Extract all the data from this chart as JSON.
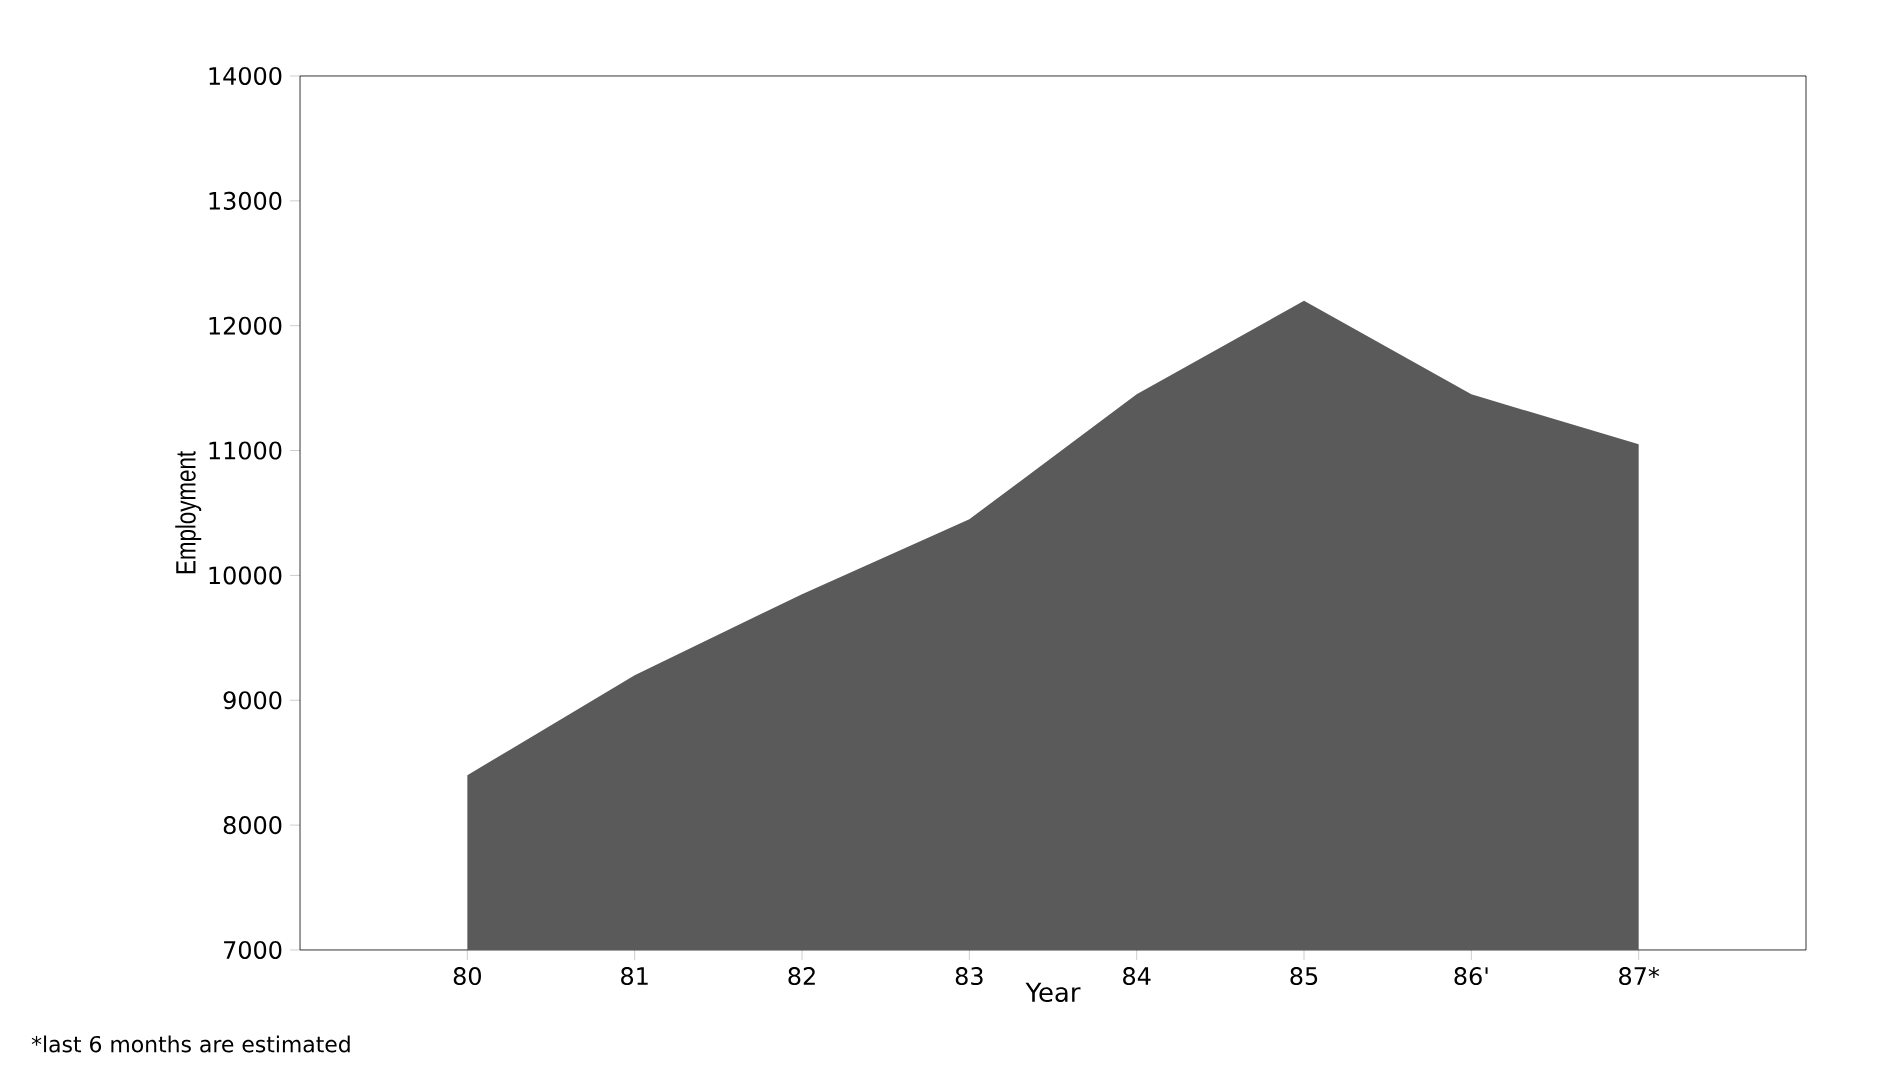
{
  "chart_data": {
    "type": "area",
    "xlabel": "Year",
    "ylabel": "Employment",
    "categories": [
      "80",
      "81",
      "82",
      "83",
      "84",
      "85",
      "86'",
      "87*"
    ],
    "values": [
      8400,
      9200,
      9850,
      10450,
      11450,
      12200,
      11450,
      11050
    ],
    "color": "#5a5a5a",
    "ylim": [
      7000,
      14000
    ],
    "yticks": [
      7000,
      8000,
      9000,
      10000,
      11000,
      12000,
      13000,
      14000
    ],
    "grid": false,
    "annotations": [
      "*last 6 months are estimated"
    ]
  }
}
